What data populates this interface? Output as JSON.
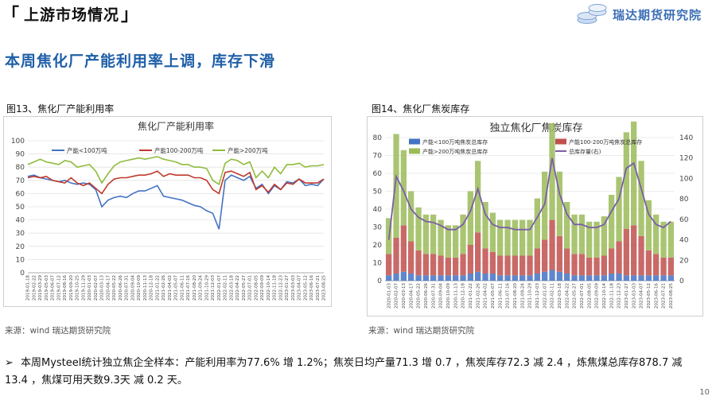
{
  "page": {
    "section_title": "上游市场情况",
    "logo_text": "瑞达期货研究院",
    "headline": "本周焦化厂产能利用率上调，库存下滑",
    "page_number": "10",
    "bullet_text": "本周Mysteel统计独立焦企全样本：产能利用率为77.6% 增 1.2%；焦炭日均产量71.3 增 0.7 ，焦炭库存72.3 减 2.4 ，炼焦煤总库存878.7 减 13.4 ，焦煤可用天数9.3天 减 0.2 天。",
    "colors": {
      "headline": "#1f5fa8",
      "logo": "#3a6db5"
    }
  },
  "figures": [
    {
      "caption": "图13、焦化厂产能利用率",
      "source": "来源：wind   瑞达期货研究院"
    },
    {
      "caption": "图14、焦化厂焦炭库存",
      "source": "来源：wind   瑞达期货研究院"
    }
  ],
  "chart_data": [
    {
      "type": "line",
      "title": "焦化厂产能利用率",
      "xlabel": "",
      "ylabel": "",
      "ylim": [
        0,
        100
      ],
      "yticks": [
        "0",
        "10",
        "20",
        "30",
        "40",
        "50",
        "60",
        "70",
        "80",
        "90",
        "100"
      ],
      "x": [
        "2019-01-18",
        "2019-02-22",
        "2019-03-29",
        "2019-05-03",
        "2019-06-07",
        "2019-07-12",
        "2019-08-16",
        "2019-09-20",
        "2019-10-25",
        "2019-11-29",
        "2020-01-03",
        "2020-02-07",
        "2020-03-13",
        "2020-04-17",
        "2020-05-22",
        "2020-06-26",
        "2020-07-31",
        "2020-09-04",
        "2020-10-09",
        "2020-11-13",
        "2020-12-18",
        "2021-01-22",
        "2021-02-26",
        "2021-04-02",
        "2021-05-07",
        "2021-06-11",
        "2021-07-16",
        "2021-08-20",
        "2021-09-24",
        "2021-10-29",
        "2021-12-03",
        "2022-01-07",
        "2022-02-11",
        "2022-03-18",
        "2022-04-22",
        "2022-05-27",
        "2022-07-01",
        "2022-08-05",
        "2022-09-09",
        "2022-10-14",
        "2022-11-18",
        "2022-12-23",
        "2023-01-27",
        "2023-03-03",
        "2023-04-07",
        "2023-05-12",
        "2023-06-16",
        "2023-07-21",
        "2023-08-25"
      ],
      "grid": true,
      "legend": "top",
      "series": [
        {
          "name": "产能<100万吨",
          "color": "#4472c4",
          "values": [
            73,
            74,
            72,
            71,
            70,
            69,
            70,
            68,
            67,
            68,
            67,
            63,
            50,
            55,
            57,
            58,
            57,
            60,
            62,
            62,
            64,
            66,
            58,
            57,
            56,
            55,
            53,
            51,
            50,
            47,
            45,
            33,
            70,
            74,
            72,
            70,
            73,
            64,
            67,
            60,
            66,
            63,
            69,
            68,
            71,
            66,
            67,
            66,
            71
          ]
        },
        {
          "name": "产能100-200万吨",
          "color": "#c0392b",
          "values": [
            72,
            73,
            72,
            73,
            70,
            69,
            68,
            72,
            68,
            66,
            68,
            64,
            60,
            67,
            71,
            72,
            72,
            73,
            74,
            74,
            75,
            77,
            73,
            75,
            74,
            74,
            74,
            72,
            72,
            70,
            63,
            60,
            76,
            77,
            75,
            73,
            76,
            63,
            66,
            61,
            67,
            63,
            68,
            67,
            71,
            68,
            68,
            68,
            71
          ]
        },
        {
          "name": "产能>200万吨",
          "color": "#8fbc3d",
          "values": [
            82,
            84,
            86,
            84,
            83,
            82,
            85,
            84,
            80,
            81,
            82,
            77,
            68,
            75,
            81,
            84,
            85,
            86,
            87,
            86,
            87,
            88,
            86,
            85,
            84,
            82,
            82,
            80,
            80,
            79,
            70,
            67,
            83,
            86,
            85,
            82,
            84,
            72,
            77,
            72,
            80,
            75,
            82,
            82,
            83,
            80,
            81,
            81,
            82
          ]
        }
      ]
    },
    {
      "type": "bar",
      "title": "独立焦化厂焦炭库存",
      "ylim": [
        0,
        80
      ],
      "y2lim": [
        0,
        140
      ],
      "yticks": [
        "0",
        "10",
        "20",
        "30",
        "40",
        "50",
        "60",
        "70",
        "80"
      ],
      "y2ticks": [
        "0",
        "20",
        "40",
        "60",
        "80",
        "100",
        "120",
        "140"
      ],
      "x": [
        "2020-01-03",
        "2020-02-07",
        "2020-03-13",
        "2020-04-17",
        "2020-05-22",
        "2020-06-26",
        "2020-07-31",
        "2020-09-04",
        "2020-10-09",
        "2020-11-13",
        "2020-12-18",
        "2021-01-22",
        "2021-02-26",
        "2021-04-02",
        "2021-05-07",
        "2021-06-11",
        "2021-07-16",
        "2021-08-20",
        "2021-09-24",
        "2021-10-29",
        "2021-12-03",
        "2022-01-07",
        "2022-02-11",
        "2022-03-18",
        "2022-04-22",
        "2022-05-27",
        "2022-07-01",
        "2022-08-05",
        "2022-09-09",
        "2022-10-14",
        "2022-11-18",
        "2022-12-23",
        "2023-01-27",
        "2023-03-03",
        "2023-04-07",
        "2023-05-12",
        "2023-06-16",
        "2023-07-21",
        "2023-08-25"
      ],
      "grid": true,
      "legend": "top",
      "series": [
        {
          "name": "产能<100万吨焦炭总库存",
          "color": "#4472c4",
          "axis": "left",
          "values": [
            3,
            4,
            5,
            4,
            3,
            3,
            3,
            3,
            3,
            3,
            3,
            4,
            5,
            4,
            4,
            3,
            3,
            3,
            3,
            3,
            4,
            5,
            6,
            5,
            4,
            3,
            3,
            3,
            3,
            3,
            4,
            4,
            3,
            3,
            3,
            3,
            3,
            3,
            3
          ]
        },
        {
          "name": "产能100-200万吨焦炭总库存",
          "color": "#c0504d",
          "axis": "left",
          "values": [
            12,
            20,
            26,
            18,
            14,
            12,
            12,
            11,
            10,
            10,
            12,
            16,
            22,
            14,
            12,
            11,
            11,
            11,
            11,
            11,
            14,
            18,
            28,
            20,
            14,
            12,
            12,
            10,
            10,
            11,
            14,
            18,
            26,
            28,
            22,
            14,
            12,
            10,
            10
          ]
        },
        {
          "name": "产能>200万吨焦炭总库存",
          "color": "#9bbb59",
          "axis": "left",
          "values": [
            20,
            58,
            42,
            28,
            24,
            22,
            22,
            20,
            18,
            18,
            22,
            30,
            40,
            26,
            22,
            20,
            20,
            20,
            20,
            20,
            28,
            38,
            54,
            36,
            26,
            22,
            22,
            20,
            20,
            22,
            30,
            36,
            54,
            58,
            42,
            28,
            22,
            20,
            20
          ]
        },
        {
          "name": "总库存量(右)",
          "color": "#7b5ea7",
          "axis": "right",
          "values": [
            40,
            102,
            88,
            70,
            62,
            58,
            57,
            54,
            50,
            50,
            55,
            68,
            90,
            65,
            55,
            52,
            52,
            50,
            50,
            50,
            62,
            75,
            120,
            85,
            65,
            55,
            55,
            52,
            52,
            55,
            68,
            80,
            110,
            115,
            90,
            65,
            55,
            52,
            58
          ]
        }
      ]
    }
  ]
}
